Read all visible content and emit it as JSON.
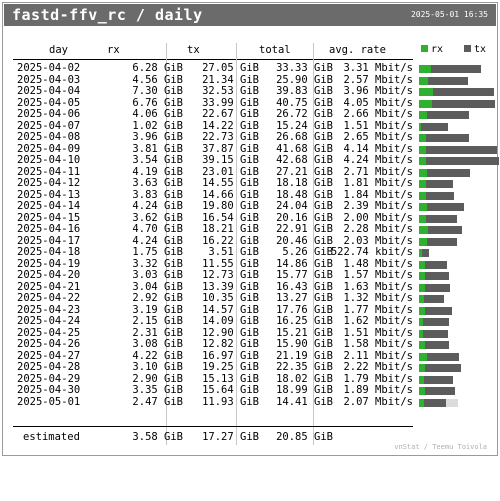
{
  "header": {
    "title": "fastd-ffv_rc / daily",
    "generated": "2025-05-01 16:35"
  },
  "columns": {
    "day": "day",
    "rx": "rx",
    "tx": "tx",
    "total": "total",
    "rate": "avg. rate"
  },
  "legend": {
    "rx": "rx",
    "tx": "tx",
    "rx_color": "#30b030",
    "tx_color": "#5c5c5c"
  },
  "rows": [
    {
      "day": "2025-04-02",
      "rx": "6.28 GiB",
      "tx": "27.05 GiB",
      "total": "33.33 GiB",
      "rate": "3.31 Mbit/s",
      "rx_value": 6.28,
      "tx_value": 27.05
    },
    {
      "day": "2025-04-03",
      "rx": "4.56 GiB",
      "tx": "21.34 GiB",
      "total": "25.90 GiB",
      "rate": "2.57 Mbit/s",
      "rx_value": 4.56,
      "tx_value": 21.34
    },
    {
      "day": "2025-04-04",
      "rx": "7.30 GiB",
      "tx": "32.53 GiB",
      "total": "39.83 GiB",
      "rate": "3.96 Mbit/s",
      "rx_value": 7.3,
      "tx_value": 32.53
    },
    {
      "day": "2025-04-05",
      "rx": "6.76 GiB",
      "tx": "33.99 GiB",
      "total": "40.75 GiB",
      "rate": "4.05 Mbit/s",
      "rx_value": 6.76,
      "tx_value": 33.99
    },
    {
      "day": "2025-04-06",
      "rx": "4.06 GiB",
      "tx": "22.67 GiB",
      "total": "26.72 GiB",
      "rate": "2.66 Mbit/s",
      "rx_value": 4.06,
      "tx_value": 22.67
    },
    {
      "day": "2025-04-07",
      "rx": "1.02 GiB",
      "tx": "14.22 GiB",
      "total": "15.24 GiB",
      "rate": "1.51 Mbit/s",
      "rx_value": 1.02,
      "tx_value": 14.22
    },
    {
      "day": "2025-04-08",
      "rx": "3.96 GiB",
      "tx": "22.73 GiB",
      "total": "26.68 GiB",
      "rate": "2.65 Mbit/s",
      "rx_value": 3.96,
      "tx_value": 22.73
    },
    {
      "day": "2025-04-09",
      "rx": "3.81 GiB",
      "tx": "37.87 GiB",
      "total": "41.68 GiB",
      "rate": "4.14 Mbit/s",
      "rx_value": 3.81,
      "tx_value": 37.87
    },
    {
      "day": "2025-04-10",
      "rx": "3.54 GiB",
      "tx": "39.15 GiB",
      "total": "42.68 GiB",
      "rate": "4.24 Mbit/s",
      "rx_value": 3.54,
      "tx_value": 39.15
    },
    {
      "day": "2025-04-11",
      "rx": "4.19 GiB",
      "tx": "23.01 GiB",
      "total": "27.21 GiB",
      "rate": "2.71 Mbit/s",
      "rx_value": 4.19,
      "tx_value": 23.01
    },
    {
      "day": "2025-04-12",
      "rx": "3.63 GiB",
      "tx": "14.55 GiB",
      "total": "18.18 GiB",
      "rate": "1.81 Mbit/s",
      "rx_value": 3.63,
      "tx_value": 14.55
    },
    {
      "day": "2025-04-13",
      "rx": "3.83 GiB",
      "tx": "14.66 GiB",
      "total": "18.48 GiB",
      "rate": "1.84 Mbit/s",
      "rx_value": 3.83,
      "tx_value": 14.66
    },
    {
      "day": "2025-04-14",
      "rx": "4.24 GiB",
      "tx": "19.80 GiB",
      "total": "24.04 GiB",
      "rate": "2.39 Mbit/s",
      "rx_value": 4.24,
      "tx_value": 19.8
    },
    {
      "day": "2025-04-15",
      "rx": "3.62 GiB",
      "tx": "16.54 GiB",
      "total": "20.16 GiB",
      "rate": "2.00 Mbit/s",
      "rx_value": 3.62,
      "tx_value": 16.54
    },
    {
      "day": "2025-04-16",
      "rx": "4.70 GiB",
      "tx": "18.21 GiB",
      "total": "22.91 GiB",
      "rate": "2.28 Mbit/s",
      "rx_value": 4.7,
      "tx_value": 18.21
    },
    {
      "day": "2025-04-17",
      "rx": "4.24 GiB",
      "tx": "16.22 GiB",
      "total": "20.46 GiB",
      "rate": "2.03 Mbit/s",
      "rx_value": 4.24,
      "tx_value": 16.22
    },
    {
      "day": "2025-04-18",
      "rx": "1.75 GiB",
      "tx": "3.51 GiB",
      "total": "5.26 GiB",
      "rate": "522.74 kbit/s",
      "rx_value": 1.75,
      "tx_value": 3.51
    },
    {
      "day": "2025-04-19",
      "rx": "3.32 GiB",
      "tx": "11.55 GiB",
      "total": "14.86 GiB",
      "rate": "1.48 Mbit/s",
      "rx_value": 3.32,
      "tx_value": 11.55
    },
    {
      "day": "2025-04-20",
      "rx": "3.03 GiB",
      "tx": "12.73 GiB",
      "total": "15.77 GiB",
      "rate": "1.57 Mbit/s",
      "rx_value": 3.03,
      "tx_value": 12.73
    },
    {
      "day": "2025-04-21",
      "rx": "3.04 GiB",
      "tx": "13.39 GiB",
      "total": "16.43 GiB",
      "rate": "1.63 Mbit/s",
      "rx_value": 3.04,
      "tx_value": 13.39
    },
    {
      "day": "2025-04-22",
      "rx": "2.92 GiB",
      "tx": "10.35 GiB",
      "total": "13.27 GiB",
      "rate": "1.32 Mbit/s",
      "rx_value": 2.92,
      "tx_value": 10.35
    },
    {
      "day": "2025-04-23",
      "rx": "3.19 GiB",
      "tx": "14.57 GiB",
      "total": "17.76 GiB",
      "rate": "1.77 Mbit/s",
      "rx_value": 3.19,
      "tx_value": 14.57
    },
    {
      "day": "2025-04-24",
      "rx": "2.15 GiB",
      "tx": "14.09 GiB",
      "total": "16.25 GiB",
      "rate": "1.62 Mbit/s",
      "rx_value": 2.15,
      "tx_value": 14.09
    },
    {
      "day": "2025-04-25",
      "rx": "2.31 GiB",
      "tx": "12.90 GiB",
      "total": "15.21 GiB",
      "rate": "1.51 Mbit/s",
      "rx_value": 2.31,
      "tx_value": 12.9
    },
    {
      "day": "2025-04-26",
      "rx": "3.08 GiB",
      "tx": "12.82 GiB",
      "total": "15.90 GiB",
      "rate": "1.58 Mbit/s",
      "rx_value": 3.08,
      "tx_value": 12.82
    },
    {
      "day": "2025-04-27",
      "rx": "4.22 GiB",
      "tx": "16.97 GiB",
      "total": "21.19 GiB",
      "rate": "2.11 Mbit/s",
      "rx_value": 4.22,
      "tx_value": 16.97
    },
    {
      "day": "2025-04-28",
      "rx": "3.10 GiB",
      "tx": "19.25 GiB",
      "total": "22.35 GiB",
      "rate": "2.22 Mbit/s",
      "rx_value": 3.1,
      "tx_value": 19.25
    },
    {
      "day": "2025-04-29",
      "rx": "2.90 GiB",
      "tx": "15.13 GiB",
      "total": "18.02 GiB",
      "rate": "1.79 Mbit/s",
      "rx_value": 2.9,
      "tx_value": 15.13
    },
    {
      "day": "2025-04-30",
      "rx": "3.35 GiB",
      "tx": "15.64 GiB",
      "total": "18.99 GiB",
      "rate": "1.89 Mbit/s",
      "rx_value": 3.35,
      "tx_value": 15.64
    },
    {
      "day": "2025-05-01",
      "rx": "2.47 GiB",
      "tx": "11.93 GiB",
      "total": "14.41 GiB",
      "rate": "2.07 Mbit/s",
      "rx_value": 2.47,
      "tx_value": 11.93,
      "est_total_value": 20.85
    }
  ],
  "estimated": {
    "label": "estimated",
    "rx": "3.58 GiB",
    "tx": "17.27 GiB",
    "total": "20.85 GiB"
  },
  "footer": {
    "credit": "vnStat / Teemu Toivola"
  }
}
